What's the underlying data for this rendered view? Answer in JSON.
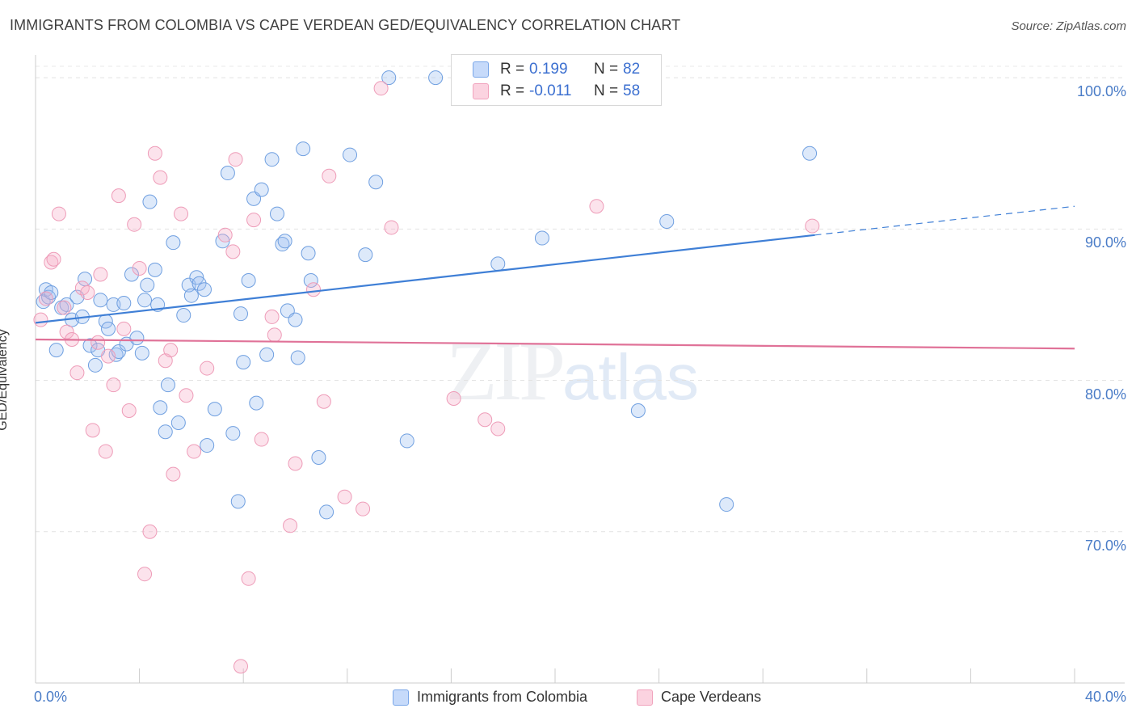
{
  "header": {
    "title": "IMMIGRANTS FROM COLOMBIA VS CAPE VERDEAN GED/EQUIVALENCY CORRELATION CHART",
    "source": "Source: ZipAtlas.com"
  },
  "watermark": {
    "part1": "ZIP",
    "part2": "atlas"
  },
  "legend": {
    "rows": [
      {
        "r_label": "R =",
        "r_value": "0.199",
        "n_label": "N =",
        "n_value": "82",
        "color": "#7aa7e8",
        "fill": "#c6dafa"
      },
      {
        "r_label": "R =",
        "r_value": "-0.011",
        "n_label": "N =",
        "n_value": "58",
        "color": "#f1a3bd",
        "fill": "#fbd3e0"
      }
    ]
  },
  "bottom_legend": {
    "items": [
      {
        "label": "Immigrants from Colombia",
        "color": "#7aa7e8",
        "fill": "#c6dafa"
      },
      {
        "label": "Cape Verdeans",
        "color": "#f1a3bd",
        "fill": "#fbd3e0"
      }
    ]
  },
  "chart_data": {
    "type": "scatter",
    "title": "IMMIGRANTS FROM COLOMBIA VS CAPE VERDEAN GED/EQUIVALENCY CORRELATION CHART",
    "xlabel": "",
    "ylabel": "GED/Equivalency",
    "xlim": [
      0,
      40
    ],
    "ylim": [
      60,
      101.5
    ],
    "x_tick_labels": [
      "0.0%",
      "40.0%"
    ],
    "y_ticks": [
      70,
      80,
      90,
      100
    ],
    "y_tick_labels": [
      "70.0%",
      "80.0%",
      "90.0%",
      "100.0%"
    ],
    "grid": true,
    "legend_position": "top-center",
    "series": [
      {
        "name": "Immigrants from Colombia",
        "color": "#3f7fd6",
        "fill": "rgba(157,192,240,0.35)",
        "stroke": "#6f9fe0",
        "trend": {
          "x": [
            0,
            30
          ],
          "y": [
            83.8,
            89.6
          ],
          "dashed_to": [
            40,
            91.5
          ]
        },
        "points": [
          [
            0.3,
            85.2
          ],
          [
            0.4,
            86.0
          ],
          [
            0.5,
            85.5
          ],
          [
            0.6,
            85.8
          ],
          [
            0.8,
            82.0
          ],
          [
            1.0,
            84.8
          ],
          [
            1.2,
            85.0
          ],
          [
            1.4,
            84.0
          ],
          [
            1.6,
            85.5
          ],
          [
            1.8,
            84.2
          ],
          [
            1.9,
            86.7
          ],
          [
            2.1,
            82.3
          ],
          [
            2.3,
            81.0
          ],
          [
            2.4,
            82.0
          ],
          [
            2.5,
            85.3
          ],
          [
            2.7,
            83.9
          ],
          [
            2.8,
            83.4
          ],
          [
            3.0,
            85.0
          ],
          [
            3.1,
            81.7
          ],
          [
            3.2,
            81.9
          ],
          [
            3.4,
            85.1
          ],
          [
            3.5,
            82.4
          ],
          [
            3.7,
            87.0
          ],
          [
            3.9,
            82.8
          ],
          [
            4.1,
            81.8
          ],
          [
            4.2,
            85.3
          ],
          [
            4.3,
            86.3
          ],
          [
            4.4,
            91.8
          ],
          [
            4.6,
            87.3
          ],
          [
            4.7,
            85.0
          ],
          [
            4.8,
            78.2
          ],
          [
            5.0,
            76.6
          ],
          [
            5.1,
            79.7
          ],
          [
            5.3,
            89.1
          ],
          [
            5.5,
            77.2
          ],
          [
            5.7,
            84.3
          ],
          [
            5.9,
            86.3
          ],
          [
            6.0,
            85.6
          ],
          [
            6.2,
            86.8
          ],
          [
            6.3,
            86.4
          ],
          [
            6.5,
            86.0
          ],
          [
            6.6,
            75.7
          ],
          [
            6.9,
            78.1
          ],
          [
            7.2,
            89.2
          ],
          [
            7.4,
            93.7
          ],
          [
            7.6,
            76.5
          ],
          [
            7.8,
            72.0
          ],
          [
            7.9,
            84.4
          ],
          [
            8.0,
            81.2
          ],
          [
            8.2,
            86.6
          ],
          [
            8.4,
            92.0
          ],
          [
            8.5,
            78.5
          ],
          [
            8.7,
            92.6
          ],
          [
            8.9,
            81.7
          ],
          [
            9.1,
            94.6
          ],
          [
            9.3,
            91.0
          ],
          [
            9.5,
            89.0
          ],
          [
            9.6,
            89.2
          ],
          [
            9.7,
            84.6
          ],
          [
            10.0,
            84.0
          ],
          [
            10.1,
            81.5
          ],
          [
            10.3,
            95.3
          ],
          [
            10.5,
            88.4
          ],
          [
            10.6,
            86.6
          ],
          [
            10.9,
            74.9
          ],
          [
            11.2,
            71.3
          ],
          [
            12.1,
            94.9
          ],
          [
            12.7,
            88.3
          ],
          [
            13.1,
            93.1
          ],
          [
            13.6,
            100.0
          ],
          [
            14.3,
            76.0
          ],
          [
            15.4,
            100.0
          ],
          [
            17.8,
            87.7
          ],
          [
            19.5,
            89.4
          ],
          [
            20.8,
            100.0
          ],
          [
            23.2,
            78.0
          ],
          [
            24.3,
            90.5
          ],
          [
            26.6,
            71.8
          ],
          [
            29.8,
            95.0
          ]
        ]
      },
      {
        "name": "Cape Verdeans",
        "color": "#e07298",
        "fill": "rgba(245,176,200,0.35)",
        "stroke": "#ee9cb8",
        "trend": {
          "x": [
            0,
            40
          ],
          "y": [
            82.7,
            82.1
          ]
        },
        "points": [
          [
            0.2,
            84.0
          ],
          [
            0.4,
            85.4
          ],
          [
            0.6,
            87.8
          ],
          [
            0.7,
            88.0
          ],
          [
            0.9,
            91.0
          ],
          [
            1.1,
            84.8
          ],
          [
            1.2,
            83.2
          ],
          [
            1.4,
            82.7
          ],
          [
            1.6,
            80.5
          ],
          [
            1.8,
            86.1
          ],
          [
            2.0,
            85.8
          ],
          [
            2.2,
            76.7
          ],
          [
            2.4,
            82.5
          ],
          [
            2.5,
            87.0
          ],
          [
            2.7,
            75.3
          ],
          [
            2.8,
            81.6
          ],
          [
            3.0,
            79.7
          ],
          [
            3.2,
            92.2
          ],
          [
            3.4,
            83.4
          ],
          [
            3.6,
            78.0
          ],
          [
            3.8,
            90.3
          ],
          [
            4.0,
            87.4
          ],
          [
            4.2,
            67.2
          ],
          [
            4.4,
            70.0
          ],
          [
            4.6,
            95.0
          ],
          [
            4.8,
            93.4
          ],
          [
            5.0,
            81.3
          ],
          [
            5.2,
            82.0
          ],
          [
            5.3,
            73.8
          ],
          [
            5.6,
            91.0
          ],
          [
            5.8,
            79.0
          ],
          [
            6.1,
            75.3
          ],
          [
            6.6,
            80.8
          ],
          [
            7.3,
            89.6
          ],
          [
            7.6,
            88.5
          ],
          [
            7.7,
            94.6
          ],
          [
            7.9,
            61.1
          ],
          [
            8.2,
            66.9
          ],
          [
            8.4,
            90.6
          ],
          [
            8.7,
            76.1
          ],
          [
            9.1,
            84.2
          ],
          [
            9.2,
            83.0
          ],
          [
            9.8,
            70.4
          ],
          [
            10.0,
            74.5
          ],
          [
            10.7,
            86.0
          ],
          [
            11.1,
            78.6
          ],
          [
            11.3,
            93.5
          ],
          [
            11.9,
            72.3
          ],
          [
            12.6,
            71.5
          ],
          [
            13.3,
            99.3
          ],
          [
            13.7,
            90.1
          ],
          [
            16.1,
            78.8
          ],
          [
            17.3,
            77.4
          ],
          [
            17.8,
            76.8
          ],
          [
            21.6,
            91.5
          ],
          [
            29.9,
            90.2
          ]
        ]
      }
    ]
  }
}
